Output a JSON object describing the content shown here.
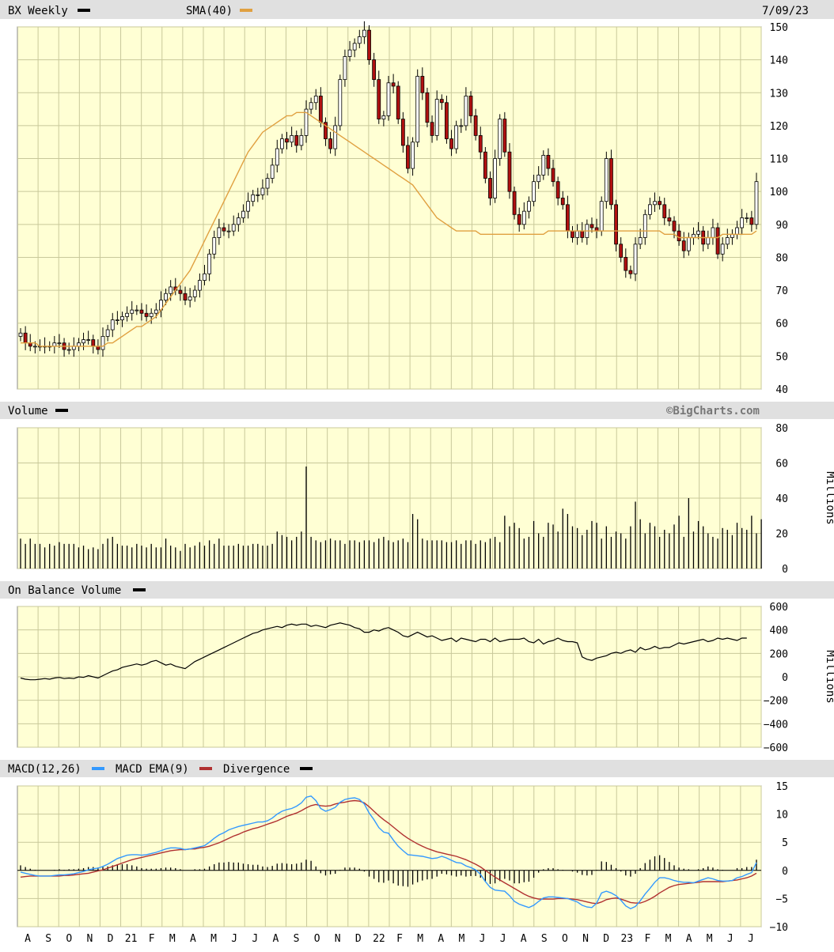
{
  "header": {
    "symbol_label": "BX Weekly",
    "sma_label": "SMA(40)",
    "date_label": "7/09/23",
    "symbol_color": "#000000",
    "sma_color": "#e0a040"
  },
  "panels": {
    "price": {
      "yticks": [
        "150",
        "140",
        "130",
        "120",
        "110",
        "100",
        "90",
        "80",
        "70",
        "60",
        "50",
        "40"
      ]
    },
    "volume": {
      "title": "Volume",
      "unit": "Millions",
      "watermark": "©BigCharts.com",
      "yticks": [
        "80",
        "60",
        "40",
        "20",
        "0"
      ]
    },
    "obv": {
      "title": "On Balance Volume",
      "unit": "Millions",
      "yticks": [
        "600",
        "400",
        "200",
        "0",
        "−200",
        "−400",
        "−600"
      ]
    },
    "macd": {
      "title1": "MACD(12,26)",
      "title2": "MACD EMA(9)",
      "title3": "Divergence",
      "macd_color": "#3399ff",
      "ema_color": "#b03030",
      "div_color": "#000000",
      "yticks": [
        "15",
        "10",
        "5",
        "0",
        "−5",
        "−10"
      ]
    }
  },
  "xaxis": {
    "labels": [
      "A",
      "S",
      "O",
      "N",
      "D",
      "21",
      "F",
      "M",
      "A",
      "M",
      "J",
      "J",
      "A",
      "S",
      "O",
      "N",
      "D",
      "22",
      "F",
      "M",
      "A",
      "M",
      "J",
      "J",
      "A",
      "S",
      "O",
      "N",
      "D",
      "23",
      "F",
      "M",
      "A",
      "M",
      "J",
      "J"
    ]
  },
  "chart_data": {
    "type": "candlestick",
    "period": "weekly",
    "ticker": "BX",
    "price_ylim": [
      40,
      150
    ],
    "volume_ylim": [
      0,
      80
    ],
    "obv_ylim": [
      -600,
      600
    ],
    "macd_ylim": [
      -10,
      15
    ],
    "price_close": [
      57,
      54,
      53,
      53,
      53,
      53,
      53,
      54,
      54,
      52,
      52,
      53,
      54,
      55,
      55,
      53,
      52,
      56,
      58,
      61,
      61,
      62,
      63,
      64,
      64,
      63,
      62,
      63,
      64,
      67,
      69,
      71,
      70,
      69,
      67,
      68,
      70,
      73,
      75,
      81,
      86,
      89,
      88,
      88,
      90,
      92,
      94,
      97,
      99,
      99,
      101,
      104,
      108,
      113,
      116,
      115,
      117,
      114,
      117,
      125,
      127,
      129,
      121,
      116,
      113,
      120,
      134,
      141,
      143,
      145,
      147,
      149,
      140,
      134,
      122,
      123,
      133,
      132,
      122,
      114,
      107,
      115,
      135,
      130,
      121,
      117,
      128,
      127,
      116,
      113,
      120,
      120,
      129,
      123,
      117,
      112,
      104,
      98,
      110,
      122,
      112,
      100,
      93,
      90,
      94,
      97,
      103,
      105,
      111,
      107,
      103,
      98,
      96,
      88,
      86,
      88,
      86,
      90,
      89,
      88,
      97,
      110,
      96,
      84,
      80,
      76,
      75,
      84,
      86,
      93,
      96,
      97,
      96,
      92,
      91,
      88,
      85,
      82,
      86,
      87,
      88,
      84,
      86,
      89,
      81,
      84,
      86,
      87,
      89,
      92,
      92,
      90,
      103
    ],
    "sma40": [
      54,
      54,
      54,
      54,
      53,
      53,
      53,
      53,
      53,
      53,
      53,
      53,
      53,
      53,
      53,
      53,
      53,
      53,
      54,
      54,
      55,
      56,
      57,
      58,
      59,
      59,
      60,
      61,
      62,
      64,
      66,
      68,
      70,
      72,
      74,
      76,
      79,
      82,
      85,
      88,
      91,
      94,
      97,
      100,
      103,
      106,
      109,
      112,
      114,
      116,
      118,
      119,
      120,
      121,
      122,
      123,
      123,
      124,
      124,
      124,
      123,
      122,
      121,
      120,
      119,
      118,
      117,
      116,
      115,
      114,
      113,
      112,
      111,
      110,
      109,
      108,
      107,
      106,
      105,
      104,
      103,
      102,
      100,
      98,
      96,
      94,
      92,
      91,
      90,
      89,
      88,
      88,
      88,
      88,
      88,
      87,
      87,
      87,
      87,
      87,
      87,
      87,
      87,
      87,
      87,
      87,
      87,
      87,
      87,
      88,
      88,
      88,
      88,
      88,
      88,
      88,
      88,
      88,
      88,
      88,
      88,
      88,
      88,
      88,
      88,
      88,
      88,
      88,
      88,
      88,
      88,
      88,
      88,
      87,
      87,
      87,
      86,
      86,
      86,
      86,
      86,
      86,
      86,
      86,
      86,
      87,
      87,
      87,
      87,
      87,
      87,
      87,
      88
    ],
    "volume_millions": [
      17,
      14,
      17,
      14,
      14,
      12,
      14,
      13,
      15,
      14,
      14,
      14,
      12,
      13,
      11,
      12,
      11,
      14,
      17,
      18,
      14,
      13,
      13,
      12,
      14,
      13,
      12,
      14,
      12,
      12,
      17,
      13,
      12,
      10,
      14,
      12,
      13,
      15,
      13,
      16,
      14,
      17,
      13,
      13,
      13,
      14,
      13,
      13,
      14,
      14,
      13,
      13,
      14,
      21,
      19,
      18,
      16,
      18,
      21,
      58,
      18,
      16,
      15,
      16,
      17,
      16,
      16,
      14,
      16,
      16,
      15,
      16,
      16,
      15,
      17,
      18,
      16,
      15,
      16,
      17,
      15,
      31,
      28,
      17,
      16,
      16,
      16,
      16,
      15,
      15,
      16,
      14,
      16,
      16,
      14,
      16,
      15,
      17,
      18,
      15,
      30,
      24,
      26,
      23,
      17,
      18,
      27,
      20,
      18,
      26,
      25,
      21,
      34,
      31,
      24,
      23,
      19,
      22,
      27,
      26,
      17,
      24,
      18,
      21,
      20,
      17,
      24,
      38,
      28,
      20,
      26,
      24,
      18,
      22,
      20,
      25,
      30,
      18,
      40,
      21,
      27,
      24,
      20,
      18,
      17,
      23,
      22,
      19,
      26,
      23,
      22,
      30,
      20,
      28
    ],
    "obv_millions": [
      -10,
      -20,
      -25,
      -25,
      -20,
      -15,
      -20,
      -10,
      -5,
      -15,
      -10,
      -15,
      0,
      -5,
      10,
      0,
      -10,
      10,
      30,
      50,
      60,
      80,
      90,
      100,
      110,
      100,
      110,
      130,
      140,
      120,
      100,
      110,
      90,
      80,
      70,
      100,
      130,
      150,
      170,
      190,
      210,
      230,
      250,
      270,
      290,
      310,
      330,
      350,
      370,
      380,
      400,
      410,
      420,
      430,
      420,
      440,
      450,
      440,
      450,
      450,
      430,
      440,
      430,
      420,
      440,
      450,
      460,
      450,
      440,
      420,
      410,
      380,
      380,
      400,
      390,
      410,
      420,
      400,
      380,
      350,
      340,
      360,
      380,
      360,
      340,
      350,
      330,
      310,
      320,
      330,
      300,
      330,
      320,
      310,
      300,
      320,
      320,
      300,
      330,
      300,
      310,
      320,
      320,
      320,
      330,
      300,
      290,
      320,
      280,
      300,
      310,
      330,
      310,
      300,
      300,
      290,
      170,
      150,
      140,
      160,
      170,
      180,
      200,
      210,
      200,
      220,
      230,
      210,
      250,
      230,
      240,
      260,
      240,
      250,
      250,
      270,
      290,
      280,
      290,
      300,
      310,
      320,
      300,
      310,
      330,
      320,
      330,
      320,
      310,
      330,
      330
    ],
    "macd": [
      -0.3,
      -0.5,
      -0.7,
      -0.9,
      -1,
      -1,
      -1,
      -0.9,
      -0.8,
      -0.8,
      -0.7,
      -0.6,
      -0.4,
      -0.2,
      0.1,
      0.3,
      0.4,
      0.7,
      1.1,
      1.6,
      2.1,
      2.4,
      2.7,
      2.8,
      2.8,
      2.7,
      2.8,
      3,
      3.2,
      3.5,
      3.8,
      4,
      4,
      3.9,
      3.7,
      3.8,
      4,
      4.2,
      4.4,
      5,
      5.7,
      6.3,
      6.7,
      7.2,
      7.5,
      7.8,
      8,
      8.2,
      8.4,
      8.6,
      8.6,
      8.8,
      9.3,
      10,
      10.5,
      10.8,
      11,
      11.4,
      12,
      13,
      13.2,
      12.4,
      11,
      10.5,
      10.8,
      11.2,
      12.1,
      12.6,
      12.8,
      12.9,
      12.6,
      11.8,
      10.2,
      9,
      7.6,
      6.8,
      6.6,
      5.4,
      4.3,
      3.5,
      2.8,
      2.7,
      2.6,
      2.5,
      2.3,
      2.1,
      2.2,
      2.5,
      2.2,
      1.8,
      1.4,
      1.3,
      0.8,
      0.5,
      0.1,
      -0.7,
      -2,
      -3,
      -3.5,
      -3.6,
      -3.7,
      -4.5,
      -5.5,
      -6,
      -6.3,
      -6.6,
      -6.2,
      -5.5,
      -4.9,
      -4.7,
      -4.7,
      -4.8,
      -4.9,
      -5,
      -5.3,
      -5.6,
      -6.2,
      -6.5,
      -6.6,
      -5.8,
      -4,
      -3.7,
      -4,
      -4.5,
      -5.3,
      -6.3,
      -6.8,
      -6.4,
      -5.4,
      -4.2,
      -3.2,
      -2.1,
      -1.3,
      -1.3,
      -1.5,
      -1.8,
      -2,
      -2.1,
      -2.1,
      -2.2,
      -1.9,
      -1.6,
      -1.3,
      -1.5,
      -1.8,
      -1.9,
      -1.9,
      -1.8,
      -1.3,
      -1.1,
      -0.7,
      -0.4,
      1.4
    ],
    "macd_ema": [
      -1.2,
      -1.1,
      -1,
      -1,
      -1,
      -1,
      -1,
      -1,
      -1,
      -0.9,
      -0.9,
      -0.8,
      -0.7,
      -0.6,
      -0.5,
      -0.3,
      -0.1,
      0.1,
      0.4,
      0.7,
      1,
      1.3,
      1.6,
      1.9,
      2.1,
      2.3,
      2.5,
      2.7,
      2.9,
      3.1,
      3.3,
      3.5,
      3.6,
      3.7,
      3.7,
      3.8,
      3.8,
      4,
      4.1,
      4.3,
      4.6,
      4.9,
      5.3,
      5.7,
      6.1,
      6.4,
      6.8,
      7.1,
      7.4,
      7.6,
      7.9,
      8.2,
      8.5,
      8.8,
      9.2,
      9.6,
      9.9,
      10.2,
      10.6,
      11.1,
      11.5,
      11.7,
      11.5,
      11.4,
      11.5,
      11.8,
      12,
      12.1,
      12.3,
      12.4,
      12.3,
      12,
      11.3,
      10.5,
      9.7,
      9,
      8.4,
      7.7,
      7,
      6.3,
      5.7,
      5.2,
      4.7,
      4.3,
      3.9,
      3.6,
      3.3,
      3.1,
      2.9,
      2.7,
      2.5,
      2.2,
      1.9,
      1.5,
      1.1,
      0.6,
      0,
      -0.6,
      -1.2,
      -1.7,
      -2.2,
      -2.7,
      -3.2,
      -3.7,
      -4.2,
      -4.6,
      -4.9,
      -5.1,
      -5.1,
      -5.1,
      -5.1,
      -5,
      -5,
      -5,
      -5.1,
      -5.2,
      -5.4,
      -5.6,
      -5.8,
      -5.9,
      -5.6,
      -5.2,
      -5,
      -4.9,
      -5.1,
      -5.4,
      -5.7,
      -5.8,
      -5.8,
      -5.5,
      -5.1,
      -4.6,
      -4,
      -3.5,
      -3,
      -2.7,
      -2.5,
      -2.4,
      -2.3,
      -2.2,
      -2.1,
      -2,
      -2,
      -2,
      -2,
      -2,
      -1.9,
      -1.8,
      -1.7,
      -1.5,
      -1.3,
      -1,
      -0.5
    ],
    "series": [
      {
        "name": "BX Weekly",
        "panel": "price"
      },
      {
        "name": "SMA(40)",
        "panel": "price"
      },
      {
        "name": "Volume",
        "panel": "volume",
        "unit": "Millions"
      },
      {
        "name": "On Balance Volume",
        "panel": "obv",
        "unit": "Millions"
      },
      {
        "name": "MACD(12,26)",
        "panel": "macd"
      },
      {
        "name": "MACD EMA(9)",
        "panel": "macd"
      },
      {
        "name": "Divergence",
        "panel": "macd"
      }
    ],
    "grid": true,
    "legend_placement": "top-left"
  }
}
